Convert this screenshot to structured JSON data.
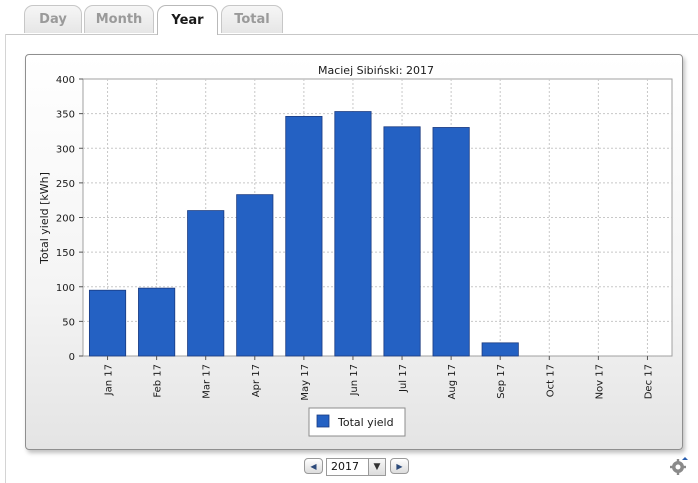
{
  "tabs": [
    {
      "label": "Day",
      "active": false
    },
    {
      "label": "Month",
      "active": false
    },
    {
      "label": "Year",
      "active": true
    },
    {
      "label": "Total",
      "active": false
    }
  ],
  "chart_data": {
    "type": "bar",
    "title": "Maciej Sibiński: 2017",
    "ylabel": "Total yield [kWh]",
    "xlabel": "",
    "categories": [
      "Jan 17",
      "Feb 17",
      "Mar 17",
      "Apr 17",
      "May 17",
      "Jun 17",
      "Jul 17",
      "Aug 17",
      "Sep 17",
      "Oct 17",
      "Nov 17",
      "Dec 17"
    ],
    "series": [
      {
        "name": "Total yield",
        "color": "#2461c3",
        "values": [
          95,
          98,
          210,
          233,
          346,
          353,
          331,
          330,
          19,
          0,
          0,
          0
        ]
      }
    ],
    "ylim": [
      0,
      400
    ],
    "yticks": [
      0,
      50,
      100,
      150,
      200,
      250,
      300,
      350,
      400
    ],
    "grid": true,
    "legend_position": "bottom"
  },
  "controls": {
    "year_value": "2017",
    "prev_icon": "arrow-left-icon",
    "next_icon": "arrow-right-icon",
    "dropdown_icon": "chevron-down-icon",
    "settings_icon": "gear-icon"
  }
}
